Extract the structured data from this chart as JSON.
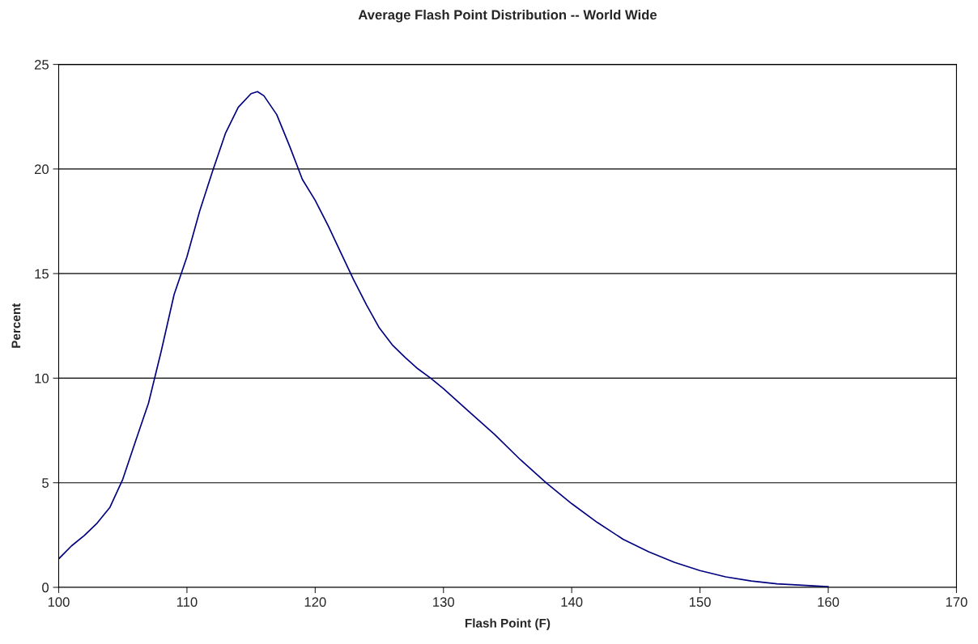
{
  "chart_data": {
    "type": "line",
    "title": "Average Flash Point Distribution -- World Wide",
    "xlabel": "Flash Point (F)",
    "ylabel": "Percent",
    "x": [
      100,
      101,
      102,
      103,
      104,
      105,
      106,
      107,
      108,
      109,
      110,
      111,
      112,
      113,
      114,
      115,
      115.5,
      116,
      117,
      118,
      119,
      120,
      121,
      122,
      123,
      124,
      125,
      126,
      127,
      128,
      129,
      130,
      132,
      134,
      136,
      138,
      140,
      142,
      144,
      146,
      148,
      150,
      152,
      154,
      156,
      158,
      160
    ],
    "series": [
      {
        "color": "#000080",
        "values": [
          1.36,
          1.98,
          2.48,
          3.07,
          3.83,
          5.17,
          7.0,
          8.8,
          11.3,
          14.0,
          15.8,
          18.0,
          19.9,
          21.7,
          22.95,
          23.6,
          23.7,
          23.5,
          22.6,
          21.1,
          19.5,
          18.5,
          17.3,
          16.0,
          14.7,
          13.5,
          12.4,
          11.6,
          11.0,
          10.45,
          10.0,
          9.5,
          8.4,
          7.3,
          6.1,
          5.0,
          4.0,
          3.1,
          2.3,
          1.7,
          1.2,
          0.8,
          0.5,
          0.3,
          0.17,
          0.1,
          0.03
        ]
      }
    ],
    "xlim": [
      100,
      170
    ],
    "xticks": [
      100,
      110,
      120,
      130,
      140,
      150,
      160,
      170
    ],
    "ylim": [
      0,
      25
    ],
    "yticks": [
      0,
      5,
      10,
      15,
      20,
      25
    ],
    "grid": "y",
    "marker": "none",
    "line_style": "solid"
  }
}
